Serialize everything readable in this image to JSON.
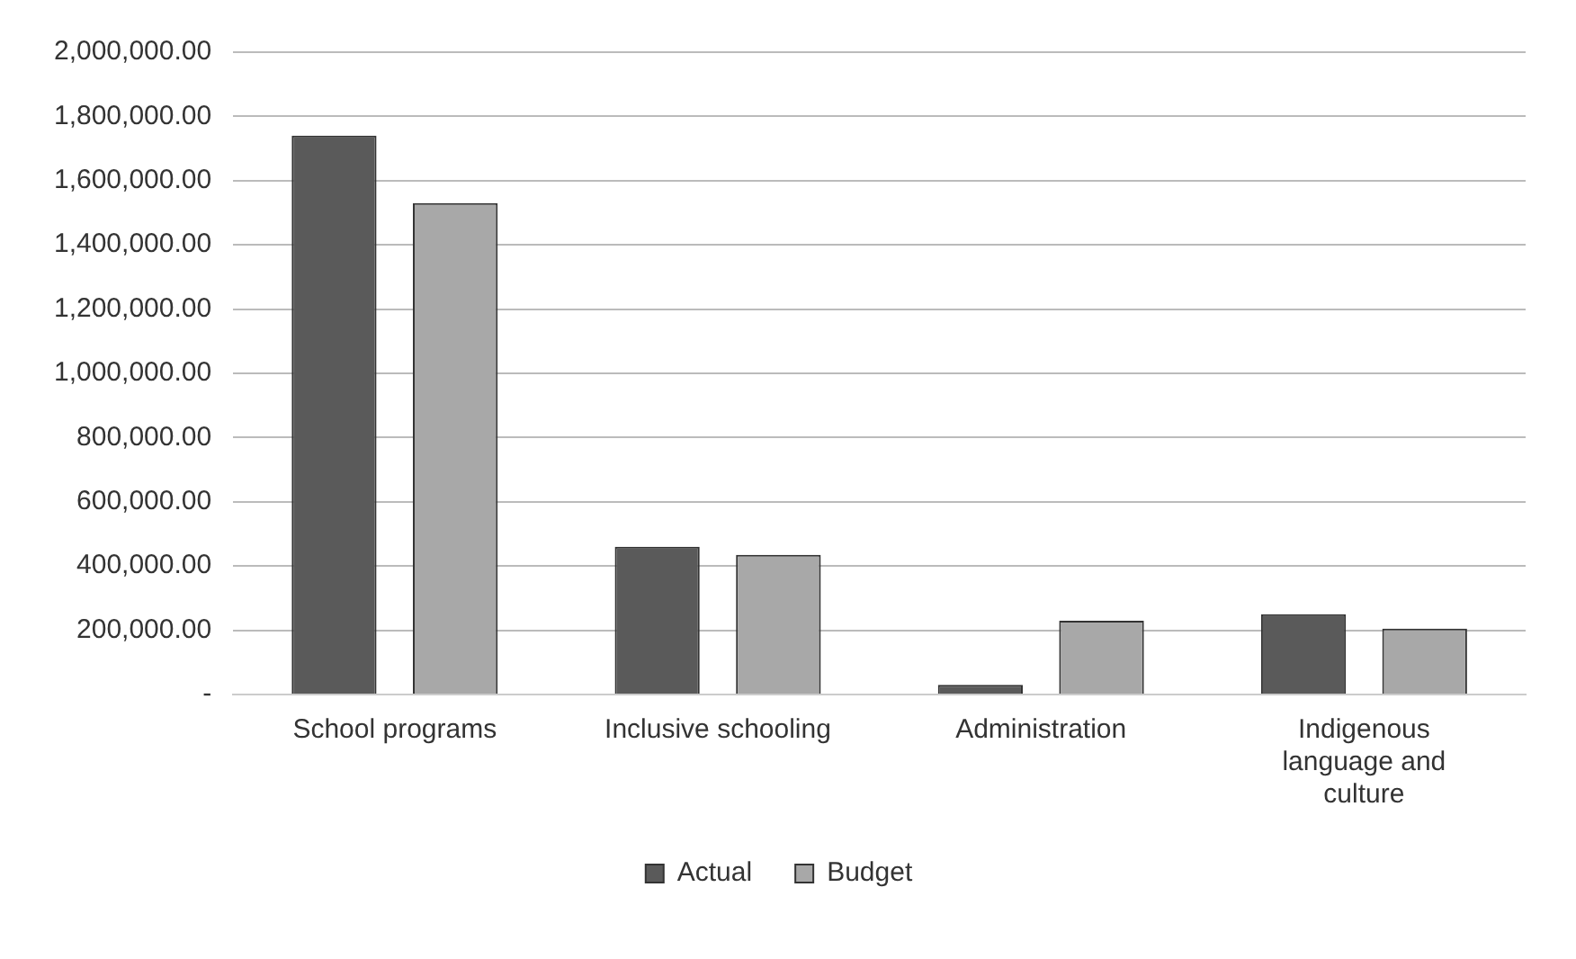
{
  "chart_data": {
    "type": "bar",
    "categories": [
      "School programs",
      "Inclusive schooling",
      "Administration",
      "Indigenous language and culture"
    ],
    "series": [
      {
        "name": "Actual",
        "color": "#5a5a5a",
        "values": [
          1740000,
          460000,
          30000,
          250000
        ]
      },
      {
        "name": "Budget",
        "color": "#a8a8a8",
        "values": [
          1530000,
          435000,
          230000,
          205000
        ]
      }
    ],
    "ylim": [
      0,
      2000000
    ],
    "yticks": [
      {
        "value": 0,
        "label": "-"
      },
      {
        "value": 200000,
        "label": "200,000.00"
      },
      {
        "value": 400000,
        "label": "400,000.00"
      },
      {
        "value": 600000,
        "label": "600,000.00"
      },
      {
        "value": 800000,
        "label": "800,000.00"
      },
      {
        "value": 1000000,
        "label": "1,000,000.00"
      },
      {
        "value": 1200000,
        "label": "1,200,000.00"
      },
      {
        "value": 1400000,
        "label": "1,400,000.00"
      },
      {
        "value": 1600000,
        "label": "1,600,000.00"
      },
      {
        "value": 1800000,
        "label": "1,800,000.00"
      },
      {
        "value": 2000000,
        "label": "2,000,000.00"
      }
    ],
    "grid": "y",
    "legend": "bottom"
  }
}
